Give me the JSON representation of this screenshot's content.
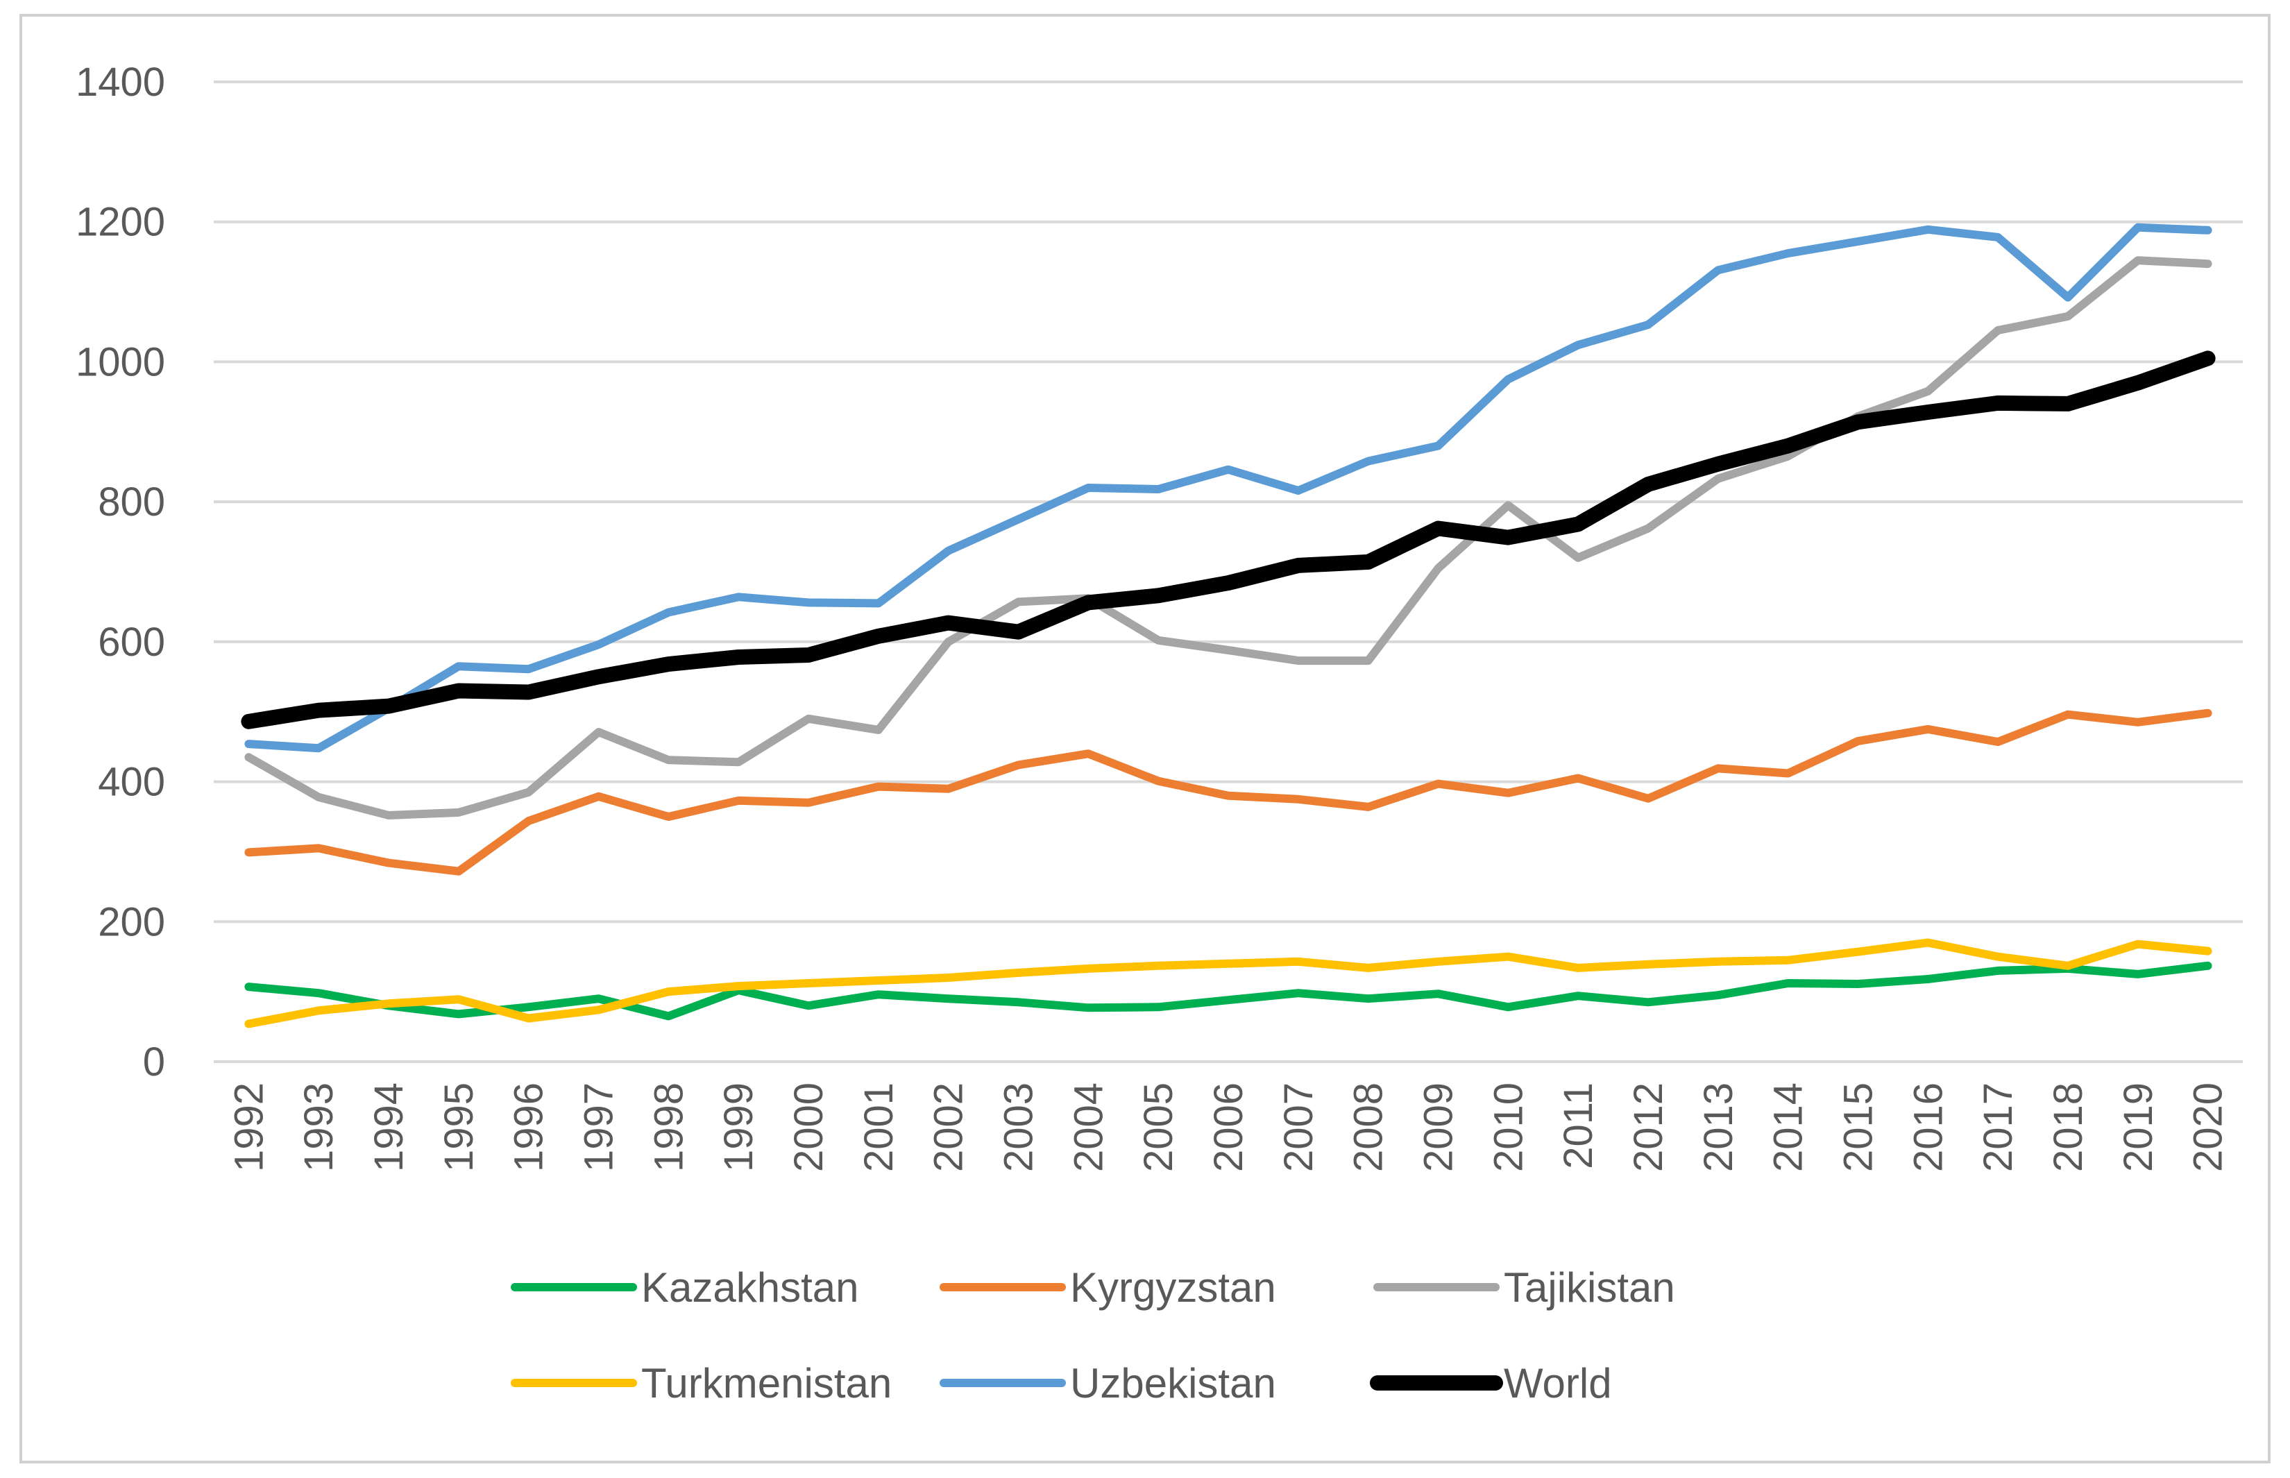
{
  "chart_data": {
    "type": "line",
    "title": "",
    "xlabel": "",
    "ylabel": "",
    "x": [
      "1992",
      "1993",
      "1994",
      "1995",
      "1996",
      "1997",
      "1998",
      "1999",
      "2000",
      "2001",
      "2002",
      "2003",
      "2004",
      "2005",
      "2006",
      "2007",
      "2008",
      "2009",
      "2010",
      "2011",
      "2012",
      "2013",
      "2014",
      "2015",
      "2016",
      "2017",
      "2018",
      "2019",
      "2020"
    ],
    "ylim": [
      0,
      1400
    ],
    "yticks": [
      "0",
      "200",
      "400",
      "600",
      "800",
      "1000",
      "1200",
      "1400"
    ],
    "grid": "horizontal",
    "legend_position": "bottom",
    "series": [
      {
        "name": "Kazakhstan",
        "color": "#00b050",
        "values": [
          107,
          98,
          80,
          68,
          78,
          90,
          65,
          102,
          80,
          96,
          90,
          85,
          77,
          78,
          88,
          98,
          90,
          97,
          78,
          94,
          85,
          95,
          112,
          111,
          118,
          130,
          133,
          125,
          137
        ]
      },
      {
        "name": "Kyrgyzstan",
        "color": "#ed7d31",
        "values": [
          299,
          305,
          284,
          272,
          344,
          379,
          350,
          373,
          370,
          393,
          390,
          424,
          440,
          401,
          380,
          375,
          364,
          397,
          384,
          405,
          376,
          419,
          412,
          458,
          475,
          457,
          496,
          485,
          498
        ]
      },
      {
        "name": "Tajikistan",
        "color": "#a5a5a5",
        "values": [
          435,
          378,
          352,
          356,
          385,
          471,
          431,
          428,
          490,
          474,
          600,
          657,
          662,
          602,
          588,
          573,
          573,
          705,
          795,
          720,
          762,
          833,
          865,
          922,
          958,
          1045,
          1065,
          1145,
          1140
        ]
      },
      {
        "name": "Turkmenistan",
        "color": "#ffc000",
        "values": [
          54,
          73,
          83,
          89,
          62,
          74,
          100,
          108,
          112,
          116,
          120,
          127,
          133,
          137,
          140,
          143,
          134,
          143,
          150,
          134,
          139,
          143,
          145,
          157,
          170,
          150,
          137,
          168,
          158
        ]
      },
      {
        "name": "Uzbekistan",
        "color": "#5b9bd5",
        "values": [
          454,
          448,
          505,
          565,
          561,
          596,
          642,
          664,
          656,
          655,
          730,
          775,
          820,
          818,
          846,
          816,
          858,
          880,
          975,
          1024,
          1053,
          1131,
          1155,
          1172,
          1189,
          1178,
          1092,
          1192,
          1188
        ]
      },
      {
        "name": "World",
        "color": "#000000",
        "values": [
          486,
          502,
          508,
          530,
          528,
          550,
          568,
          578,
          581,
          608,
          627,
          614,
          656,
          666,
          684,
          709,
          714,
          762,
          749,
          768,
          825,
          854,
          880,
          914,
          928,
          941,
          940,
          970,
          1005
        ]
      }
    ]
  }
}
